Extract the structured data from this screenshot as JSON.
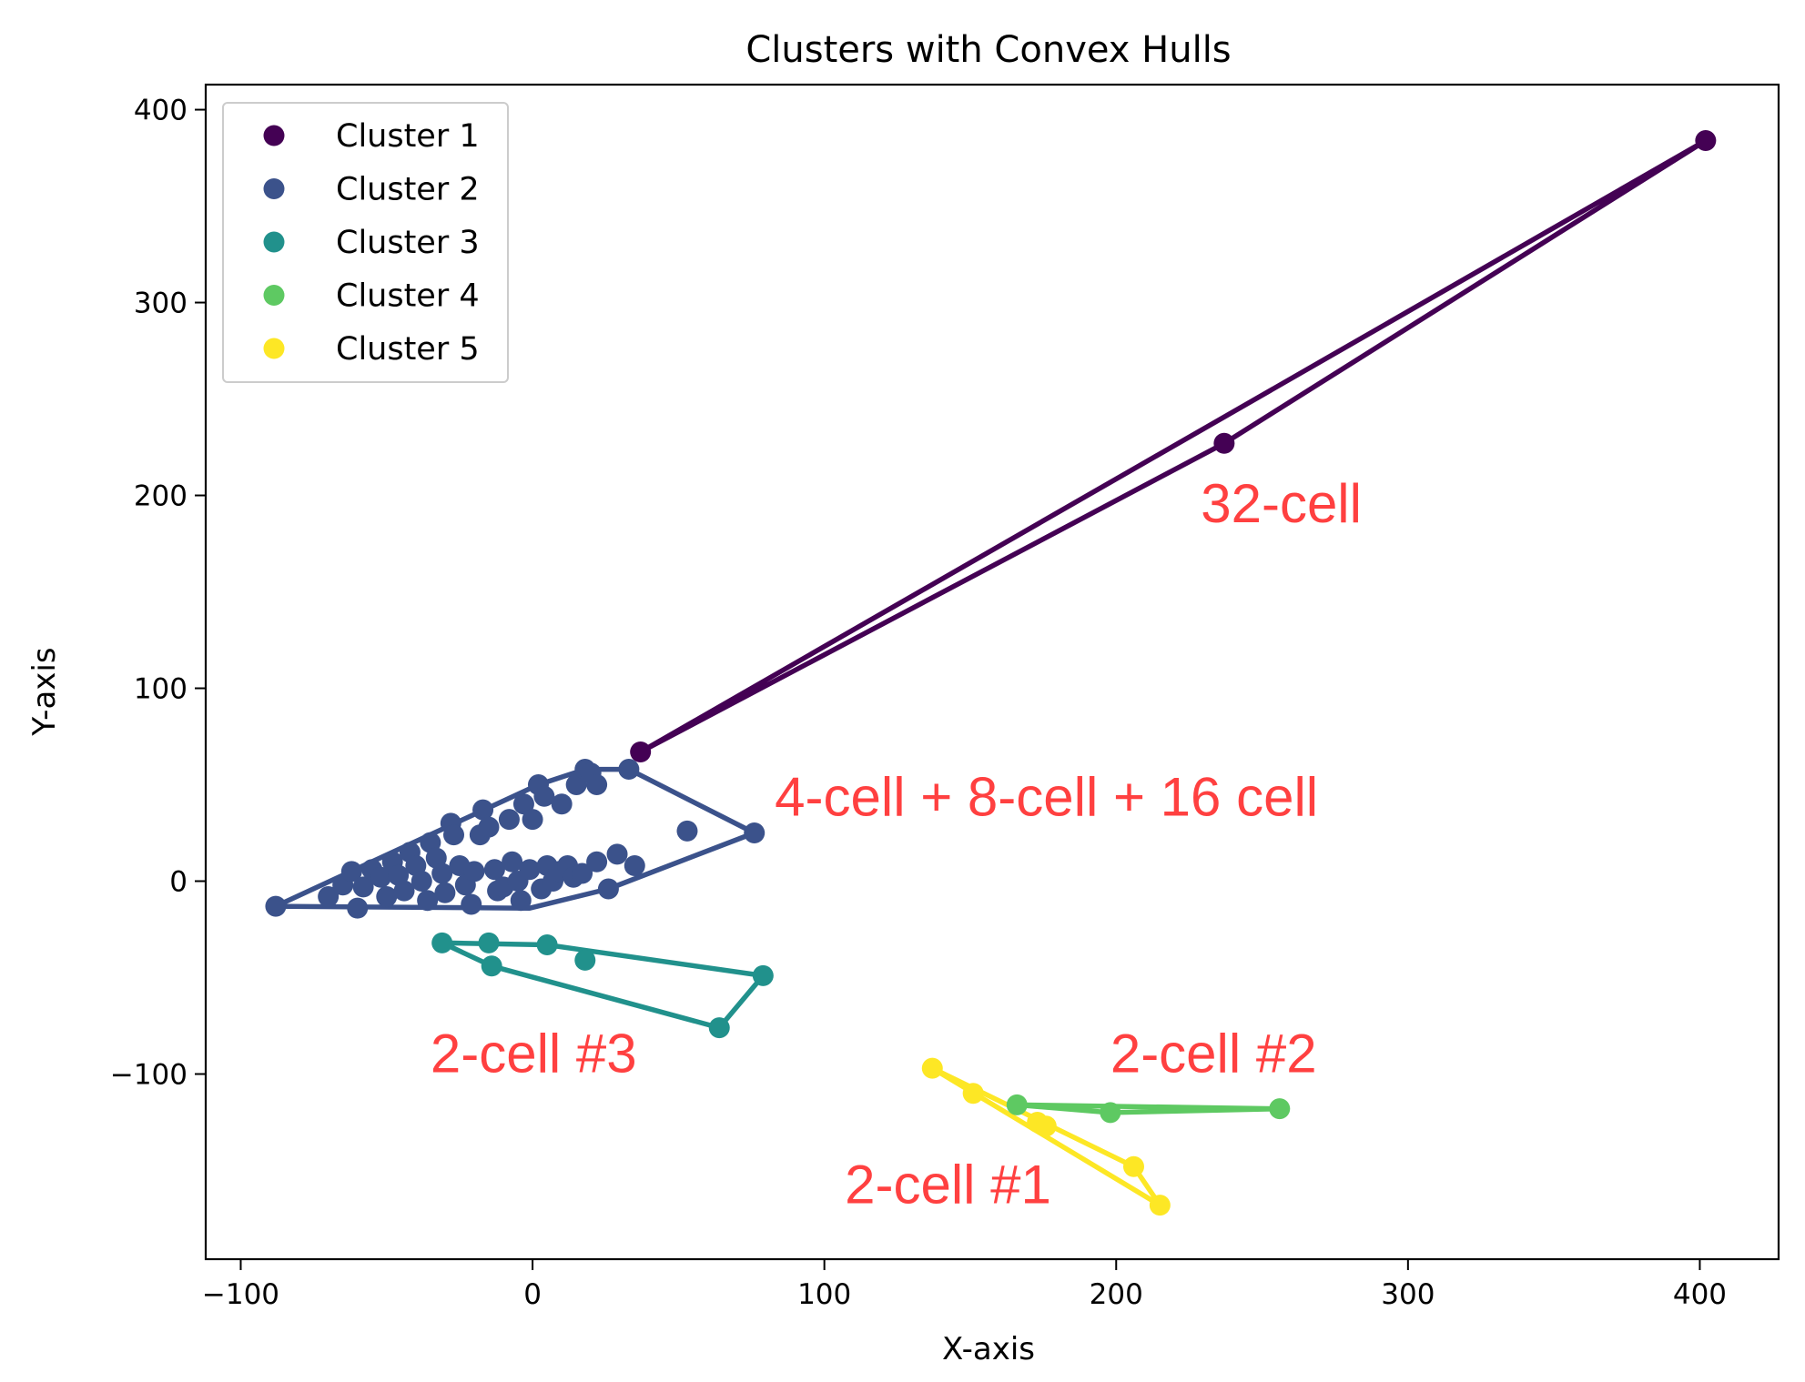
{
  "chart_data": {
    "type": "scatter",
    "title": "Clusters with Convex Hulls",
    "xlabel": "X-axis",
    "ylabel": "Y-axis",
    "xlim": [
      -112,
      427
    ],
    "ylim": [
      -196,
      413
    ],
    "xticks": [
      -100,
      0,
      100,
      200,
      300,
      400
    ],
    "yticks": [
      -100,
      0,
      100,
      200,
      300,
      400
    ],
    "xtick_labels": [
      "−100",
      "0",
      "100",
      "200",
      "300",
      "400"
    ],
    "ytick_labels": [
      "−100",
      "0",
      "100",
      "200",
      "300",
      "400"
    ],
    "grid": false,
    "legend_position": "top-left",
    "series": [
      {
        "name": "Cluster 1",
        "color": "#440154",
        "points": [
          [
            37,
            67
          ],
          [
            237,
            227
          ],
          [
            402,
            384
          ]
        ],
        "hull": [
          [
            37,
            67
          ],
          [
            237,
            227
          ],
          [
            402,
            384
          ],
          [
            37,
            67
          ]
        ]
      },
      {
        "name": "Cluster 2",
        "color": "#3b528b",
        "points": [
          [
            -88,
            -13
          ],
          [
            -70,
            -8
          ],
          [
            -65,
            -2
          ],
          [
            -62,
            5
          ],
          [
            -60,
            -14
          ],
          [
            -58,
            -3
          ],
          [
            -55,
            6
          ],
          [
            -52,
            2
          ],
          [
            -50,
            -8
          ],
          [
            -48,
            10
          ],
          [
            -46,
            3
          ],
          [
            -44,
            -5
          ],
          [
            -42,
            15
          ],
          [
            -40,
            8
          ],
          [
            -38,
            0
          ],
          [
            -36,
            -10
          ],
          [
            -35,
            20
          ],
          [
            -33,
            12
          ],
          [
            -31,
            4
          ],
          [
            -30,
            -6
          ],
          [
            -28,
            30
          ],
          [
            -27,
            24
          ],
          [
            -25,
            8
          ],
          [
            -23,
            -2
          ],
          [
            -21,
            -12
          ],
          [
            -20,
            5
          ],
          [
            -18,
            24
          ],
          [
            -17,
            37
          ],
          [
            -15,
            28
          ],
          [
            -13,
            6
          ],
          [
            -12,
            -5
          ],
          [
            -10,
            -3
          ],
          [
            -8,
            32
          ],
          [
            -7,
            10
          ],
          [
            -5,
            0
          ],
          [
            -4,
            -10
          ],
          [
            -3,
            40
          ],
          [
            -1,
            6
          ],
          [
            0,
            32
          ],
          [
            2,
            50
          ],
          [
            3,
            -4
          ],
          [
            4,
            44
          ],
          [
            5,
            8
          ],
          [
            7,
            0
          ],
          [
            9,
            5
          ],
          [
            10,
            40
          ],
          [
            12,
            8
          ],
          [
            14,
            2
          ],
          [
            15,
            50
          ],
          [
            17,
            4
          ],
          [
            18,
            58
          ],
          [
            20,
            56
          ],
          [
            22,
            10
          ],
          [
            22,
            50
          ],
          [
            26,
            -4
          ],
          [
            29,
            14
          ],
          [
            33,
            58
          ],
          [
            35,
            8
          ],
          [
            53,
            26
          ],
          [
            76,
            25
          ]
        ],
        "hull": [
          [
            -88,
            -13
          ],
          [
            2,
            50
          ],
          [
            18,
            58
          ],
          [
            33,
            58
          ],
          [
            76,
            25
          ],
          [
            26,
            -4
          ],
          [
            -1,
            -14
          ],
          [
            -88,
            -13
          ]
        ]
      },
      {
        "name": "Cluster 3",
        "color": "#21918c",
        "points": [
          [
            -31,
            -32
          ],
          [
            -15,
            -32
          ],
          [
            -14,
            -44
          ],
          [
            5,
            -33
          ],
          [
            18,
            -41
          ],
          [
            64,
            -76
          ],
          [
            79,
            -49
          ]
        ],
        "hull": [
          [
            -31,
            -32
          ],
          [
            5,
            -33
          ],
          [
            79,
            -49
          ],
          [
            64,
            -76
          ],
          [
            -14,
            -44
          ],
          [
            -31,
            -32
          ]
        ]
      },
      {
        "name": "Cluster 4",
        "color": "#5ec962",
        "points": [
          [
            166,
            -116
          ],
          [
            198,
            -120
          ],
          [
            256,
            -118
          ]
        ],
        "hull": [
          [
            166,
            -116
          ],
          [
            256,
            -118
          ],
          [
            198,
            -120
          ],
          [
            166,
            -116
          ]
        ]
      },
      {
        "name": "Cluster 5",
        "color": "#fde725",
        "points": [
          [
            137,
            -97
          ],
          [
            151,
            -110
          ],
          [
            173,
            -125
          ],
          [
            176,
            -127
          ],
          [
            206,
            -148
          ],
          [
            215,
            -168
          ]
        ],
        "hull": [
          [
            137,
            -97
          ],
          [
            206,
            -148
          ],
          [
            215,
            -168
          ],
          [
            137,
            -97
          ]
        ]
      }
    ],
    "annotations": [
      {
        "text": "32-cell",
        "x": 229,
        "y": 186,
        "color": "#ff4040"
      },
      {
        "text": "4-cell + 8-cell + 16 cell",
        "x": 83,
        "y": 34,
        "color": "#ff4040"
      },
      {
        "text": "2-cell #3",
        "x": -35,
        "y": -99,
        "color": "#ff4040"
      },
      {
        "text": "2-cell #2",
        "x": 198,
        "y": -99,
        "color": "#ff4040"
      },
      {
        "text": "2-cell #1",
        "x": 107,
        "y": -167,
        "color": "#ff4040"
      }
    ]
  }
}
